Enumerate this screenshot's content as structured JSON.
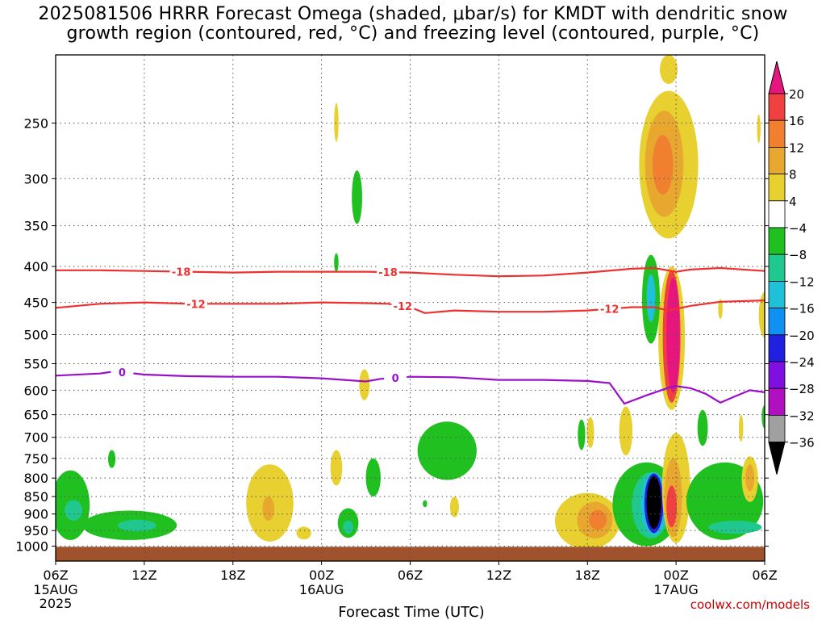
{
  "title_line1": "2025081506 HRRR Forecast Omega (shaded, μbar/s) for KMDT with dendritic snow",
  "title_line2": "growth region (contoured, red, °C) and freezing level (contoured, purple, °C)",
  "credit": "coolwx.com/models",
  "chart_data": {
    "type": "heatmap",
    "title": "2025081506 HRRR Forecast Omega (shaded, μbar/s) for KMDT with dendritic snow growth region (contoured, red, °C) and freezing level (contoured, purple, °C)",
    "xlabel": "Forecast Time (UTC)",
    "ylabel": "",
    "x_unit": "forecast hour",
    "xlim": [
      0,
      48
    ],
    "y_unit": "hPa",
    "ylim": [
      1050,
      200
    ],
    "y_scale": "log",
    "grid": true,
    "x_ticks": [
      {
        "hour": 0,
        "label": "06Z",
        "sub": [
          "15AUG",
          "2025"
        ]
      },
      {
        "hour": 6,
        "label": "12Z",
        "sub": []
      },
      {
        "hour": 12,
        "label": "18Z",
        "sub": []
      },
      {
        "hour": 18,
        "label": "00Z",
        "sub": [
          "16AUG"
        ]
      },
      {
        "hour": 24,
        "label": "06Z",
        "sub": []
      },
      {
        "hour": 30,
        "label": "12Z",
        "sub": []
      },
      {
        "hour": 36,
        "label": "18Z",
        "sub": []
      },
      {
        "hour": 42,
        "label": "00Z",
        "sub": [
          "17AUG"
        ]
      },
      {
        "hour": 48,
        "label": "06Z",
        "sub": []
      }
    ],
    "y_ticks": [
      250,
      300,
      350,
      400,
      450,
      500,
      550,
      600,
      650,
      700,
      750,
      800,
      850,
      900,
      950,
      1000
    ],
    "colorbar": {
      "labels": [
        "20",
        "16",
        "12",
        "8",
        "4",
        "−4",
        "−8",
        "−12",
        "−16",
        "−20",
        "−24",
        "−28",
        "−32",
        "−36"
      ],
      "colors": [
        "#e8157f",
        "#f04040",
        "#f08030",
        "#e8a830",
        "#e8d030",
        "#ffffff",
        "#20c020",
        "#20c890",
        "#20c0d8",
        "#1090f0",
        "#2020e0",
        "#8010e0",
        "#b010c0",
        "#a0a0a0",
        "#000000"
      ]
    },
    "terrain_color": "#a0522d",
    "contours": [
      {
        "label": "-18",
        "color": "#ee3030",
        "x": [
          0,
          3,
          6,
          9,
          12,
          15,
          18,
          21,
          24,
          27,
          30,
          33,
          36,
          39,
          40.5,
          42,
          43,
          45,
          48
        ],
        "y": [
          405,
          405,
          406,
          407,
          408,
          407,
          407,
          407,
          408,
          411,
          413,
          412,
          408,
          403,
          402,
          407,
          404,
          402,
          406
        ],
        "label_at": [
          8.5,
          22.5
        ]
      },
      {
        "label": "-12",
        "color": "#ee3030",
        "x": [
          0,
          3,
          6,
          9,
          12,
          15,
          18,
          21,
          22.5,
          24,
          25,
          27,
          30,
          33,
          36,
          39,
          40.5,
          41.5,
          43,
          45,
          48
        ],
        "y": [
          458,
          452,
          450,
          452,
          452,
          452,
          450,
          451,
          452,
          457,
          466,
          462,
          464,
          464,
          462,
          457,
          457,
          462,
          455,
          449,
          447
        ],
        "label_at": [
          9.5,
          23.5,
          37.5
        ]
      },
      {
        "label": "0",
        "color": "#9a10c8",
        "x": [
          0,
          3,
          4,
          6,
          9,
          12,
          15,
          18,
          21,
          22,
          24,
          27,
          30,
          33,
          36,
          37.5,
          38.5,
          40,
          41.5,
          42,
          43,
          44,
          45,
          46,
          47,
          48
        ],
        "y": [
          572,
          568,
          564,
          570,
          573,
          574,
          574,
          577,
          583,
          578,
          574,
          575,
          580,
          580,
          582,
          586,
          627,
          610,
          595,
          592,
          596,
          607,
          625,
          612,
          600,
          604
        ],
        "label_at": [
          4.5,
          23.0
        ]
      }
    ],
    "omega_regions": [
      {
        "level": -8,
        "cx": 1.0,
        "cp": 880,
        "rx": 1.3,
        "rp": 100
      },
      {
        "level": -12,
        "cx": 1.2,
        "cp": 890,
        "rx": 0.6,
        "rp": 30
      },
      {
        "level": -8,
        "cx": 5.0,
        "cp": 935,
        "rx": 3.2,
        "rp": 45
      },
      {
        "level": -12,
        "cx": 5.5,
        "cp": 935,
        "rx": 1.3,
        "rp": 18
      },
      {
        "level": -8,
        "cx": 3.8,
        "cp": 752,
        "rx": 0.25,
        "rp": 22
      },
      {
        "level": 4,
        "cx": 14.5,
        "cp": 875,
        "rx": 1.6,
        "rp": 110
      },
      {
        "level": 8,
        "cx": 14.4,
        "cp": 885,
        "rx": 0.4,
        "rp": 35
      },
      {
        "level": 4,
        "cx": 16.8,
        "cp": 958,
        "rx": 0.5,
        "rp": 20
      },
      {
        "level": 4,
        "cx": 19.0,
        "cp": 775,
        "rx": 0.4,
        "rp": 45
      },
      {
        "level": -8,
        "cx": 21.5,
        "cp": 800,
        "rx": 0.5,
        "rp": 50
      },
      {
        "level": -8,
        "cx": 19.8,
        "cp": 928,
        "rx": 0.7,
        "rp": 45
      },
      {
        "level": -12,
        "cx": 19.8,
        "cp": 940,
        "rx": 0.35,
        "rp": 20
      },
      {
        "level": 4,
        "cx": 20.9,
        "cp": 590,
        "rx": 0.35,
        "rp": 30
      },
      {
        "level": -8,
        "cx": 20.4,
        "cp": 320,
        "rx": 0.35,
        "rp": 28
      },
      {
        "level": -8,
        "cx": 19.0,
        "cp": 395,
        "rx": 0.15,
        "rp": 12
      },
      {
        "level": 4,
        "cx": 19.0,
        "cp": 250,
        "rx": 0.15,
        "rp": 16
      },
      {
        "level": -8,
        "cx": 26.5,
        "cp": 735,
        "rx": 2.0,
        "rp": 70
      },
      {
        "level": -8,
        "cx": 25.0,
        "cp": 870,
        "rx": 0.15,
        "rp": 10
      },
      {
        "level": 4,
        "cx": 27.0,
        "cp": 880,
        "rx": 0.3,
        "rp": 30
      },
      {
        "level": 4,
        "cx": 36.0,
        "cp": 925,
        "rx": 2.2,
        "rp": 85
      },
      {
        "level": 8,
        "cx": 36.5,
        "cp": 920,
        "rx": 1.2,
        "rp": 55
      },
      {
        "level": 12,
        "cx": 36.7,
        "cp": 918,
        "rx": 0.6,
        "rp": 30
      },
      {
        "level": -8,
        "cx": 35.6,
        "cp": 695,
        "rx": 0.25,
        "rp": 35
      },
      {
        "level": 4,
        "cx": 36.2,
        "cp": 690,
        "rx": 0.25,
        "rp": 35
      },
      {
        "level": 4,
        "cx": 38.6,
        "cp": 688,
        "rx": 0.45,
        "rp": 55
      },
      {
        "level": -8,
        "cx": 40.0,
        "cp": 880,
        "rx": 2.3,
        "rp": 120
      },
      {
        "level": -12,
        "cx": 40.3,
        "cp": 880,
        "rx": 1.3,
        "rp": 95
      },
      {
        "level": -16,
        "cx": 40.5,
        "cp": 875,
        "rx": 0.9,
        "rp": 90
      },
      {
        "level": -24,
        "cx": 40.5,
        "cp": 873,
        "rx": 0.65,
        "rp": 85
      },
      {
        "level": -36,
        "cx": 40.5,
        "cp": 870,
        "rx": 0.5,
        "rp": 75
      },
      {
        "level": 4,
        "cx": 42.0,
        "cp": 840,
        "rx": 0.95,
        "rp": 150
      },
      {
        "level": 8,
        "cx": 41.8,
        "cp": 860,
        "rx": 0.6,
        "rp": 110
      },
      {
        "level": 16,
        "cx": 41.7,
        "cp": 880,
        "rx": 0.35,
        "rp": 60
      },
      {
        "level": 4,
        "cx": 41.7,
        "cp": 520,
        "rx": 0.9,
        "rp": 120
      },
      {
        "level": 16,
        "cx": 41.7,
        "cp": 515,
        "rx": 0.6,
        "rp": 110
      },
      {
        "level": 20,
        "cx": 41.8,
        "cp": 510,
        "rx": 0.45,
        "rp": 95
      },
      {
        "level": -8,
        "cx": 40.3,
        "cp": 450,
        "rx": 0.6,
        "rp": 65
      },
      {
        "level": -16,
        "cx": 40.3,
        "cp": 445,
        "rx": 0.3,
        "rp": 35
      },
      {
        "level": 4,
        "cx": 41.5,
        "cp": 295,
        "rx": 2.0,
        "rp": 70
      },
      {
        "level": 8,
        "cx": 41.2,
        "cp": 290,
        "rx": 1.3,
        "rp": 50
      },
      {
        "level": 12,
        "cx": 41.1,
        "cp": 288,
        "rx": 0.7,
        "rp": 28
      },
      {
        "level": 4,
        "cx": 41.5,
        "cp": 210,
        "rx": 0.6,
        "rp": 10
      },
      {
        "level": -8,
        "cx": 45.3,
        "cp": 870,
        "rx": 2.6,
        "rp": 110
      },
      {
        "level": -12,
        "cx": 46.0,
        "cp": 940,
        "rx": 1.8,
        "rp": 20
      },
      {
        "level": -8,
        "cx": 43.8,
        "cp": 680,
        "rx": 0.35,
        "rp": 40
      },
      {
        "level": -8,
        "cx": 48.0,
        "cp": 655,
        "rx": 0.2,
        "rp": 25
      },
      {
        "level": 4,
        "cx": 47.0,
        "cp": 805,
        "rx": 0.55,
        "rp": 60
      },
      {
        "level": 8,
        "cx": 47.0,
        "cp": 800,
        "rx": 0.3,
        "rp": 35
      },
      {
        "level": 4,
        "cx": 46.4,
        "cp": 680,
        "rx": 0.15,
        "rp": 30
      },
      {
        "level": 4,
        "cx": 48.0,
        "cp": 470,
        "rx": 0.4,
        "rp": 35
      },
      {
        "level": 4,
        "cx": 45.0,
        "cp": 460,
        "rx": 0.15,
        "rp": 15
      },
      {
        "level": 4,
        "cx": 47.6,
        "cp": 255,
        "rx": 0.12,
        "rp": 12
      }
    ]
  }
}
